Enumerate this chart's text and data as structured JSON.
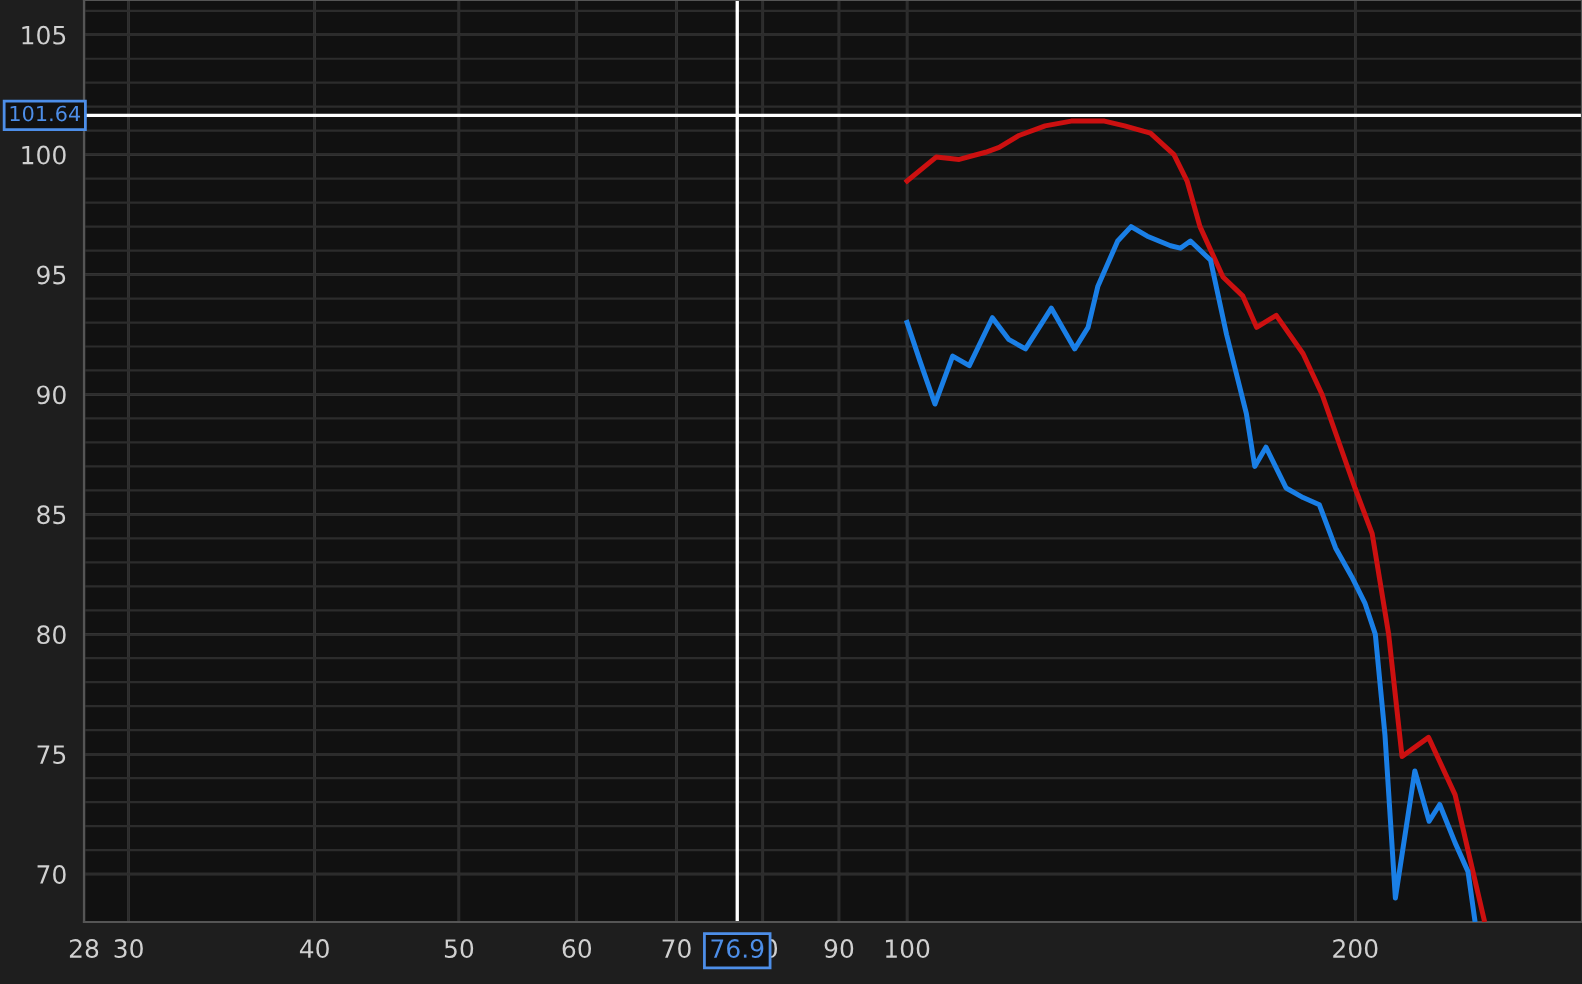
{
  "chart_data": {
    "type": "line",
    "log": "x",
    "xlim": [
      28,
      284
    ],
    "ylim": [
      68,
      106.45
    ],
    "xticks": [
      28,
      30,
      40,
      50,
      60,
      70,
      80,
      90,
      100,
      200
    ],
    "yticks": [
      70,
      {
        "value": 71,
        "label": null
      },
      {
        "value": 72,
        "label": null
      },
      {
        "value": 73,
        "label": null
      },
      {
        "value": 74,
        "label": null
      },
      75,
      {
        "value": 76,
        "label": null
      },
      {
        "value": 77,
        "label": null
      },
      {
        "value": 78,
        "label": null
      },
      {
        "value": 79,
        "label": null
      },
      80,
      {
        "value": 81,
        "label": null
      },
      {
        "value": 82,
        "label": null
      },
      {
        "value": 83,
        "label": null
      },
      {
        "value": 84,
        "label": null
      },
      85,
      {
        "value": 86,
        "label": null
      },
      {
        "value": 87,
        "label": null
      },
      {
        "value": 88,
        "label": null
      },
      {
        "value": 89,
        "label": null
      },
      90,
      {
        "value": 91,
        "label": null
      },
      {
        "value": 92,
        "label": null
      },
      {
        "value": 93,
        "label": null
      },
      {
        "value": 94,
        "label": null
      },
      95,
      {
        "value": 96,
        "label": null
      },
      {
        "value": 97,
        "label": null
      },
      {
        "value": 98,
        "label": null
      },
      {
        "value": 99,
        "label": null
      },
      100,
      {
        "value": 101,
        "label": null
      },
      {
        "value": 102,
        "label": null
      },
      {
        "value": 103,
        "label": null
      },
      {
        "value": 104,
        "label": null
      },
      105,
      {
        "value": 106,
        "label": null
      }
    ],
    "grid": true,
    "ref_lines": [
      {
        "axis": "x",
        "value": 76.9,
        "label": "76.9",
        "color": "#ffffff"
      },
      {
        "axis": "y",
        "value": 101.64,
        "label": "101.64",
        "color": "#ffffff"
      }
    ],
    "series": [
      {
        "color": "#cc1010",
        "x": [
          100,
          104.6,
          108.4,
          112.9,
          115.3,
          118.9,
          123.8,
          128.9,
          135.7,
          140.0,
          145.7,
          151.1,
          154.2,
          157.3,
          163.0,
          168.1,
          171.7,
          177.0,
          184.5,
          190.0,
          199.9,
          205.3,
          210.6,
          215.0,
          224.0,
          233.4,
          244.1
        ],
        "values": [
          98.9,
          99.9,
          99.8,
          100.1,
          100.3,
          100.8,
          101.2,
          101.4,
          101.4,
          101.2,
          100.9,
          100.0,
          98.9,
          97.0,
          94.9,
          94.1,
          92.8,
          93.3,
          91.7,
          90.0,
          86.1,
          84.2,
          80.0,
          74.9,
          75.7,
          73.3,
          68.1
        ]
      },
      {
        "color": "#1a7fe6",
        "x": [
          100,
          102.0,
          104.4,
          107.3,
          110.1,
          114.1,
          117.0,
          120.1,
          125.0,
          129.6,
          132.3,
          134.3,
          138.5,
          141.4,
          145.0,
          150.3,
          152.6,
          155.0,
          159.9,
          163.9,
          169.0,
          171.2,
          174.2,
          179.7,
          184.5,
          189.2,
          194.0,
          198.9,
          203.0,
          206.3,
          209.4,
          212.8,
          219.3,
          224.2,
          227.9,
          233.4,
          238.1,
          240.6
        ],
        "values": [
          93.0,
          91.4,
          89.6,
          91.6,
          91.2,
          93.2,
          92.3,
          91.9,
          93.6,
          91.9,
          92.8,
          94.5,
          96.4,
          97.0,
          96.6,
          96.2,
          96.1,
          96.4,
          95.6,
          92.5,
          89.2,
          87.0,
          87.8,
          86.1,
          85.7,
          85.4,
          83.6,
          82.4,
          81.3,
          80.0,
          75.8,
          69.0,
          74.3,
          72.2,
          72.9,
          71.3,
          70.1,
          68.1
        ]
      }
    ]
  }
}
